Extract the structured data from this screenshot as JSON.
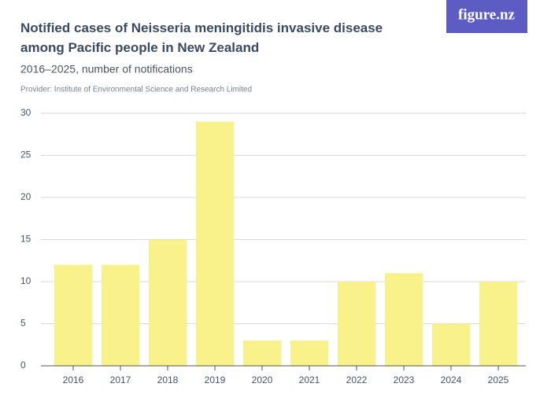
{
  "chart_data": {
    "type": "bar",
    "title": "Notified cases of Neisseria meningitidis invasive disease among Pacific people in New Zealand",
    "subtitle": "2016–2025, number of notifications",
    "provider": "Provider: Institute of Environmental Science and Research Limited",
    "logo": "figure.nz",
    "categories": [
      "2016",
      "2017",
      "2018",
      "2019",
      "2020",
      "2021",
      "2022",
      "2023",
      "2024",
      "2025"
    ],
    "values": [
      12,
      12,
      15,
      29,
      3,
      3,
      10,
      11,
      5,
      10
    ],
    "color": "#f9f18a",
    "ylim": [
      0,
      30
    ],
    "yticks": [
      0,
      5,
      10,
      15,
      20,
      25,
      30
    ],
    "grid": true
  }
}
